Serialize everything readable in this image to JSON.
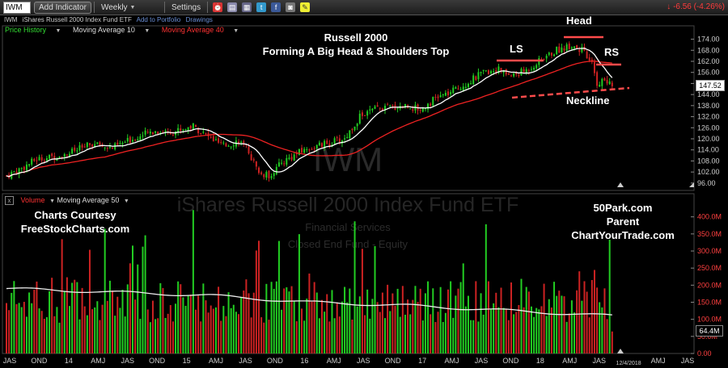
{
  "toolbar": {
    "symbol": "IWM",
    "add_indicator": "Add Indicator",
    "period": "Weekly",
    "settings": "Settings",
    "change": "↓ -6.56 (-4.26%)"
  },
  "info": {
    "symbol": "IWM",
    "name": "iShares Russell 2000 Index Fund ETF",
    "add_portfolio": "Add to Portfolio",
    "drawings": "Drawings"
  },
  "price_legend": {
    "price": "Price History",
    "ma10": "Moving Average 10",
    "ma40": "Moving Average 40"
  },
  "volume_legend": {
    "close": "x",
    "volume": "Volume",
    "ma50": "Moving Average 50"
  },
  "watermark": {
    "symbol": "IWM",
    "name": "iShares Russell 2000 Index Fund ETF",
    "sector": "Financial Services",
    "type": "Closed End Fund - Equity"
  },
  "annotations": {
    "title_line1": "Russell 2000",
    "title_line2": "Forming A Big Head & Shoulders Top",
    "ls": "LS",
    "head": "Head",
    "rs": "RS",
    "neckline": "Neckline",
    "credit_line1": "Charts Courtesy",
    "credit_line2": "FreeStockCharts.com",
    "site1": "50Park.com",
    "site2": "Parent",
    "site3": "ChartYourTrade.com"
  },
  "colors": {
    "up": "#22cc22",
    "down": "#cc2222",
    "ma_short": "#ffffff",
    "ma_long": "#ee2222",
    "annotation": "#ff4b4b"
  },
  "chart_data": {
    "type": "candlestick",
    "title": "Russell 2000 Forming A Big Head & Shoulders Top",
    "x_ticks": [
      "JAS",
      "OND",
      "14",
      "AMJ",
      "JAS",
      "OND",
      "15",
      "AMJ",
      "JAS",
      "OND",
      "16",
      "AMJ",
      "JAS",
      "OND",
      "17",
      "AMJ",
      "JAS",
      "OND",
      "18",
      "AMJ",
      "JAS",
      "12/4/2018",
      "AMJ",
      "JAS"
    ],
    "price_axis": {
      "ticks": [
        "174.00",
        "168.00",
        "162.00",
        "156.00",
        "150.00",
        "144.00",
        "138.00",
        "132.00",
        "126.00",
        "120.00",
        "114.00",
        "108.00",
        "102.00",
        "96.00"
      ],
      "range": [
        92,
        176
      ],
      "last_price": "147.52"
    },
    "volume_axis": {
      "ticks": [
        "400.0M",
        "350.0M",
        "300.0M",
        "250.0M",
        "200.0M",
        "150.0M",
        "100.0M",
        "50.0M",
        "0.00"
      ],
      "range": [
        0,
        430
      ],
      "last_volume": "64.4M"
    },
    "price_anchors": [
      [
        0,
        100
      ],
      [
        6,
        104
      ],
      [
        12,
        109
      ],
      [
        18,
        110
      ],
      [
        26,
        113
      ],
      [
        34,
        117
      ],
      [
        42,
        115
      ],
      [
        50,
        120
      ],
      [
        58,
        124
      ],
      [
        66,
        124
      ],
      [
        74,
        127
      ],
      [
        80,
        121
      ],
      [
        86,
        116
      ],
      [
        92,
        119
      ],
      [
        96,
        113
      ],
      [
        100,
        101
      ],
      [
        104,
        100
      ],
      [
        110,
        108
      ],
      [
        118,
        114
      ],
      [
        126,
        117
      ],
      [
        134,
        120
      ],
      [
        140,
        132
      ],
      [
        146,
        136
      ],
      [
        152,
        137
      ],
      [
        158,
        138
      ],
      [
        164,
        136
      ],
      [
        170,
        142
      ],
      [
        176,
        145
      ],
      [
        182,
        150
      ],
      [
        188,
        155
      ],
      [
        194,
        158
      ],
      [
        200,
        154
      ],
      [
        206,
        157
      ],
      [
        212,
        163
      ],
      [
        218,
        168
      ],
      [
        224,
        171
      ],
      [
        228,
        168
      ],
      [
        232,
        160
      ],
      [
        234,
        150
      ],
      [
        237,
        152
      ],
      [
        240,
        148
      ]
    ],
    "candles": 241,
    "volume_ma_anchors": [
      [
        0,
        190
      ],
      [
        40,
        180
      ],
      [
        80,
        170
      ],
      [
        120,
        150
      ],
      [
        160,
        140
      ],
      [
        200,
        125
      ],
      [
        240,
        110
      ]
    ]
  }
}
